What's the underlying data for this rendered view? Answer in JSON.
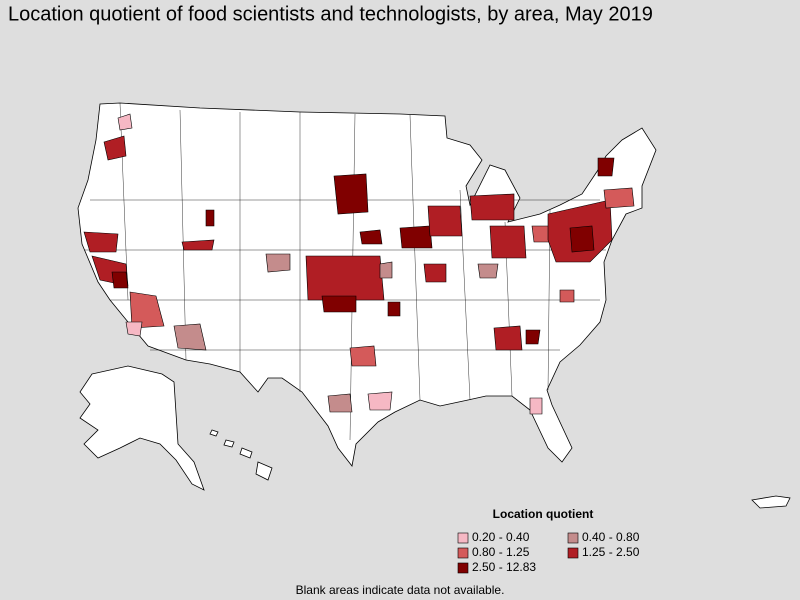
{
  "title": "Location quotient of food scientists and technologists, by area, May 2019",
  "legend": {
    "title": "Location quotient",
    "items": [
      {
        "label": "0.20 - 0.40",
        "color": "#f6b8c4"
      },
      {
        "label": "0.40 - 0.80",
        "color": "#c48c8c"
      },
      {
        "label": "0.80 - 1.25",
        "color": "#d45a5a"
      },
      {
        "label": "1.25 - 2.50",
        "color": "#b01e24"
      },
      {
        "label": "2.50 - 12.83",
        "color": "#800000"
      }
    ]
  },
  "footnote": "Blank areas indicate data not available."
}
